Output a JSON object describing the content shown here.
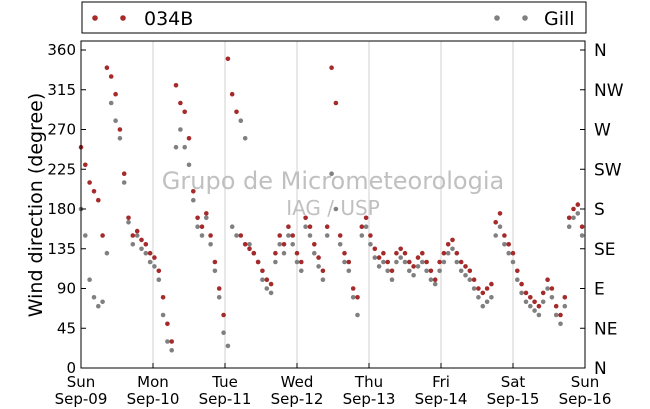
{
  "chart_data": {
    "type": "scatter",
    "legend": {
      "placement": "top",
      "items": [
        {
          "name": "034B",
          "color": "#a52a2a",
          "align": "left"
        },
        {
          "name": "Gill",
          "color": "#808080",
          "align": "right"
        }
      ]
    },
    "ylabel": "Wind direction (degree)",
    "ylim": [
      0,
      360
    ],
    "y_ticks": [
      0,
      45,
      90,
      135,
      180,
      225,
      270,
      315,
      360
    ],
    "y2_tick_labels": [
      "N",
      "NE",
      "E",
      "SE",
      "S",
      "SW",
      "W",
      "NW",
      "N"
    ],
    "xlim": [
      0,
      7
    ],
    "x_ticks": [
      {
        "day": "Sun",
        "date": "Sep-09"
      },
      {
        "day": "Mon",
        "date": "Sep-10"
      },
      {
        "day": "Tue",
        "date": "Sep-11"
      },
      {
        "day": "Wed",
        "date": "Sep-12"
      },
      {
        "day": "Thu",
        "date": "Sep-13"
      },
      {
        "day": "Fri",
        "date": "Sep-14"
      },
      {
        "day": "Sat",
        "date": "Sep-15"
      },
      {
        "day": "Sun",
        "date": "Sep-16"
      }
    ],
    "grid": "vertical",
    "watermark": [
      "Grupo de Micrometeorologia",
      "IAG / USP"
    ],
    "series": [
      {
        "name": "Gill",
        "color": "#808080",
        "x": [
          0.0,
          0.06,
          0.12,
          0.18,
          0.24,
          0.3,
          0.36,
          0.42,
          0.48,
          0.54,
          0.6,
          0.66,
          0.72,
          0.78,
          0.84,
          0.9,
          0.96,
          1.02,
          1.08,
          1.14,
          1.2,
          1.26,
          1.32,
          1.38,
          1.44,
          1.5,
          1.56,
          1.62,
          1.68,
          1.74,
          1.8,
          1.86,
          1.92,
          1.98,
          2.04,
          2.1,
          2.16,
          2.22,
          2.28,
          2.34,
          2.4,
          2.46,
          2.52,
          2.58,
          2.64,
          2.7,
          2.76,
          2.82,
          2.88,
          2.94,
          3.0,
          3.06,
          3.12,
          3.18,
          3.24,
          3.3,
          3.36,
          3.42,
          3.48,
          3.54,
          3.6,
          3.66,
          3.72,
          3.78,
          3.84,
          3.9,
          3.96,
          4.02,
          4.08,
          4.14,
          4.2,
          4.26,
          4.32,
          4.38,
          4.44,
          4.5,
          4.56,
          4.62,
          4.68,
          4.74,
          4.8,
          4.86,
          4.92,
          4.98,
          5.04,
          5.1,
          5.16,
          5.22,
          5.28,
          5.34,
          5.4,
          5.46,
          5.52,
          5.58,
          5.64,
          5.7,
          5.76,
          5.82,
          5.88,
          5.94,
          6.0,
          6.06,
          6.12,
          6.18,
          6.24,
          6.3,
          6.36,
          6.42,
          6.48,
          6.54,
          6.6,
          6.66,
          6.72,
          6.78,
          6.84,
          6.9,
          6.96
        ],
        "y": [
          180,
          150,
          100,
          80,
          70,
          75,
          130,
          300,
          280,
          260,
          210,
          165,
          140,
          150,
          135,
          130,
          120,
          115,
          100,
          60,
          30,
          20,
          250,
          270,
          250,
          230,
          190,
          160,
          150,
          170,
          140,
          110,
          80,
          40,
          25,
          160,
          150,
          280,
          260,
          140,
          130,
          120,
          100,
          90,
          85,
          120,
          140,
          130,
          150,
          140,
          120,
          110,
          160,
          150,
          130,
          115,
          100,
          150,
          220,
          180,
          140,
          120,
          110,
          80,
          60,
          150,
          160,
          140,
          125,
          115,
          120,
          110,
          100,
          120,
          125,
          120,
          110,
          105,
          115,
          120,
          110,
          100,
          95,
          110,
          120,
          130,
          135,
          120,
          110,
          105,
          100,
          90,
          80,
          70,
          75,
          80,
          150,
          160,
          140,
          130,
          120,
          100,
          85,
          75,
          70,
          65,
          60,
          75,
          90,
          80,
          60,
          50,
          70,
          160,
          170,
          175,
          150
        ]
      },
      {
        "name": "034B",
        "color": "#a52a2a",
        "x": [
          0.0,
          0.06,
          0.12,
          0.18,
          0.24,
          0.3,
          0.36,
          0.42,
          0.48,
          0.54,
          0.6,
          0.66,
          0.72,
          0.78,
          0.84,
          0.9,
          0.96,
          1.02,
          1.08,
          1.14,
          1.2,
          1.26,
          1.32,
          1.38,
          1.44,
          1.5,
          1.56,
          1.62,
          1.68,
          1.74,
          1.8,
          1.86,
          1.92,
          1.98,
          2.04,
          2.1,
          2.16,
          2.22,
          2.28,
          2.34,
          2.4,
          2.46,
          2.52,
          2.58,
          2.64,
          2.7,
          2.76,
          2.82,
          2.88,
          2.94,
          3.0,
          3.06,
          3.12,
          3.18,
          3.24,
          3.3,
          3.36,
          3.42,
          3.48,
          3.54,
          3.6,
          3.66,
          3.72,
          3.78,
          3.84,
          3.9,
          3.96,
          4.02,
          4.08,
          4.14,
          4.2,
          4.26,
          4.32,
          4.38,
          4.44,
          4.5,
          4.56,
          4.62,
          4.68,
          4.74,
          4.8,
          4.86,
          4.92,
          4.98,
          5.04,
          5.1,
          5.16,
          5.22,
          5.28,
          5.34,
          5.4,
          5.46,
          5.52,
          5.58,
          5.64,
          5.7,
          5.76,
          5.82,
          5.88,
          5.94,
          6.0,
          6.06,
          6.12,
          6.18,
          6.24,
          6.3,
          6.36,
          6.42,
          6.48,
          6.54,
          6.6,
          6.66,
          6.72,
          6.78,
          6.84,
          6.9,
          6.96
        ],
        "y": [
          250,
          230,
          210,
          200,
          190,
          150,
          340,
          330,
          310,
          270,
          220,
          170,
          150,
          155,
          145,
          140,
          130,
          125,
          110,
          80,
          50,
          30,
          320,
          300,
          290,
          260,
          200,
          170,
          160,
          175,
          150,
          120,
          90,
          60,
          350,
          310,
          290,
          150,
          140,
          135,
          130,
          120,
          110,
          100,
          95,
          130,
          150,
          140,
          160,
          150,
          130,
          120,
          170,
          160,
          140,
          125,
          110,
          160,
          340,
          300,
          150,
          130,
          120,
          90,
          80,
          160,
          170,
          150,
          135,
          125,
          130,
          120,
          110,
          130,
          135,
          130,
          120,
          115,
          125,
          130,
          120,
          110,
          100,
          120,
          130,
          140,
          145,
          130,
          120,
          115,
          110,
          100,
          90,
          85,
          90,
          95,
          165,
          175,
          150,
          140,
          130,
          110,
          95,
          85,
          80,
          75,
          70,
          85,
          100,
          90,
          70,
          60,
          80,
          170,
          180,
          185,
          160
        ]
      }
    ]
  }
}
